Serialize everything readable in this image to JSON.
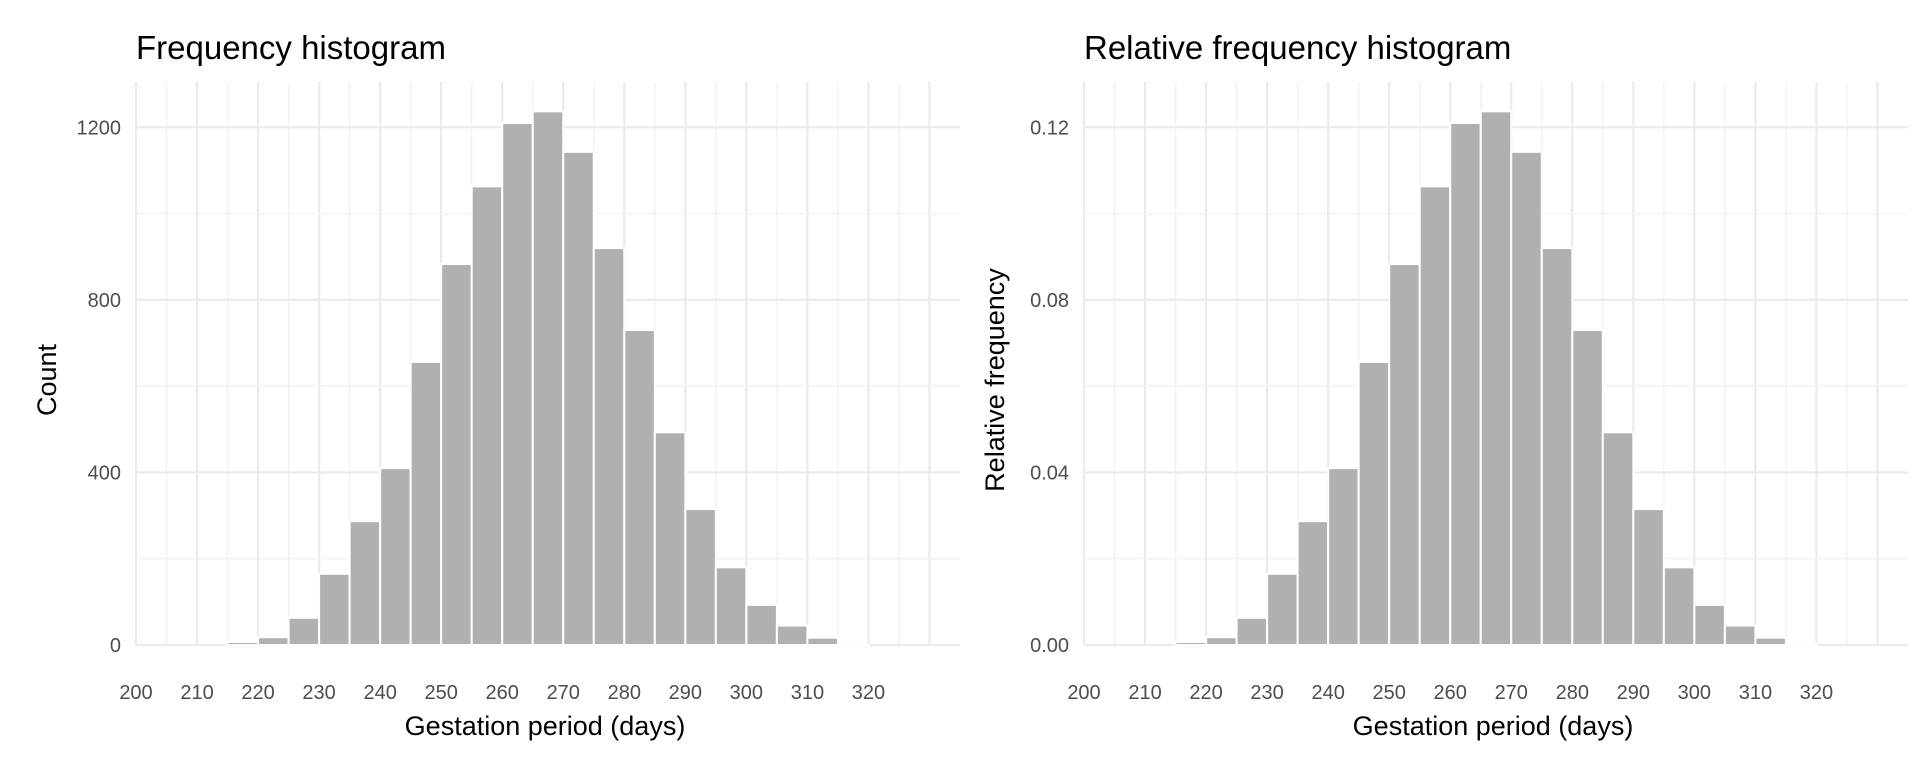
{
  "chart_data": [
    {
      "type": "bar",
      "title": "Frequency histogram",
      "xlabel": "Gestation period (days)",
      "ylabel": "Count",
      "xlim": [
        200,
        335
      ],
      "ylim": [
        0,
        1240
      ],
      "grid": true,
      "legend": "none",
      "x_ticks": [
        200,
        210,
        220,
        230,
        240,
        250,
        260,
        270,
        280,
        290,
        300,
        310,
        320
      ],
      "y_ticks": [
        0,
        400,
        800,
        1200
      ],
      "y_tick_labels": [
        "0",
        "400",
        "800",
        "1200"
      ],
      "bins_start": [
        200,
        205,
        210,
        215,
        220,
        225,
        230,
        235,
        240,
        245,
        250,
        255,
        260,
        265,
        270,
        275,
        280,
        285,
        290,
        295,
        300,
        305,
        310,
        315,
        320,
        325
      ],
      "bin_width": 5,
      "values": [
        0,
        0,
        0,
        7,
        18,
        63,
        165,
        287,
        410,
        656,
        883,
        1063,
        1210,
        1237,
        1143,
        920,
        730,
        493,
        315,
        180,
        93,
        45,
        17,
        2,
        0,
        0
      ]
    },
    {
      "type": "bar",
      "title": "Relative frequency histogram",
      "xlabel": "Gestation period (days)",
      "ylabel": "Relative frequency",
      "xlim": [
        200,
        335
      ],
      "ylim": [
        0,
        0.124
      ],
      "grid": true,
      "legend": "none",
      "x_ticks": [
        200,
        210,
        220,
        230,
        240,
        250,
        260,
        270,
        280,
        290,
        300,
        310,
        320
      ],
      "y_ticks": [
        0,
        0.04,
        0.08,
        0.12
      ],
      "y_tick_labels": [
        "0.00",
        "0.04",
        "0.08",
        "0.12"
      ],
      "bins_start": [
        200,
        205,
        210,
        215,
        220,
        225,
        230,
        235,
        240,
        245,
        250,
        255,
        260,
        265,
        270,
        275,
        280,
        285,
        290,
        295,
        300,
        305,
        310,
        315,
        320,
        325
      ],
      "bin_width": 5,
      "values": [
        0,
        0,
        0,
        0.0007,
        0.0018,
        0.0063,
        0.0165,
        0.0287,
        0.041,
        0.0656,
        0.0883,
        0.1063,
        0.121,
        0.1237,
        0.1143,
        0.092,
        0.073,
        0.0493,
        0.0315,
        0.018,
        0.0093,
        0.0045,
        0.0017,
        0.0002,
        0,
        0
      ]
    }
  ]
}
